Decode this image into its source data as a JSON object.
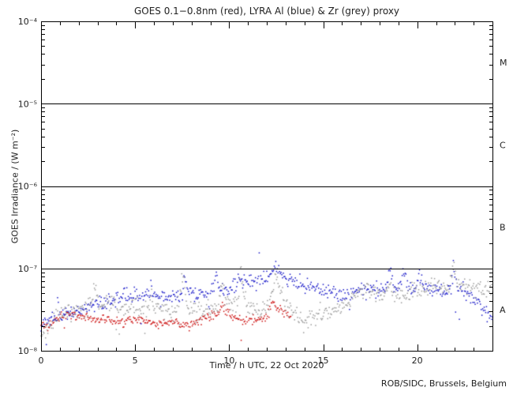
{
  "header": {
    "title": "GOES 0.1−0.8nm (red), LYRA Al (blue) & Zr (grey) proxy"
  },
  "footer": {
    "credit": "ROB/SIDC, Brussels, Belgium"
  },
  "chart_data": {
    "type": "scatter",
    "title": "GOES 0.1−0.8nm (red), LYRA Al (blue) & Zr (grey) proxy",
    "xlabel": "Time / h UTC, 22 Oct 2020",
    "ylabel": "GOES Irradiance / (W m⁻²)",
    "x_range": [
      0,
      24
    ],
    "y_range_exp": [
      -8,
      -4
    ],
    "x_major_ticks": [
      0,
      5,
      10,
      15,
      20
    ],
    "x_minor_step": 1,
    "y_tick_labels": [
      {
        "exp": -4,
        "label": "10⁻⁴"
      },
      {
        "exp": -5,
        "label": "10⁻⁵"
      },
      {
        "exp": -6,
        "label": "10⁻⁶"
      },
      {
        "exp": -7,
        "label": "10⁻⁷"
      },
      {
        "exp": -8,
        "label": "10⁻⁸"
      }
    ],
    "hlines_exp": [
      -5,
      -6,
      -7
    ],
    "flare_classes": [
      {
        "label": "M",
        "exp": -4.5
      },
      {
        "label": "C",
        "exp": -5.5
      },
      {
        "label": "B",
        "exp": -6.5
      },
      {
        "label": "A",
        "exp": -7.5
      }
    ],
    "grid": false,
    "legend": "encoded in title colors",
    "value_unit": "1e-8 W m-2",
    "series": [
      {
        "name": "GOES 0.1-0.8nm",
        "color": "#cc1111",
        "noise_dex": 0.028,
        "outlier_p": 0.004,
        "dt": 0.04,
        "anchors": [
          [
            0,
            2.2
          ],
          [
            0.3,
            2.0
          ],
          [
            0.8,
            2.5
          ],
          [
            1.5,
            2.7
          ],
          [
            2.2,
            2.6
          ],
          [
            3,
            2.4
          ],
          [
            4,
            2.3
          ],
          [
            5,
            2.4
          ],
          [
            5.8,
            2.2
          ],
          [
            6.5,
            2.1
          ],
          [
            7,
            2.3
          ],
          [
            7.8,
            2.0
          ],
          [
            8.3,
            2.2
          ],
          [
            9,
            2.6
          ],
          [
            9.5,
            2.9
          ],
          [
            9.65,
            3.6
          ],
          [
            9.8,
            3.1
          ],
          [
            10.2,
            2.6
          ],
          [
            10.8,
            2.3
          ],
          [
            11.5,
            2.4
          ],
          [
            12.0,
            2.6
          ],
          [
            12.3,
            3.8
          ],
          [
            12.5,
            3.3
          ],
          [
            12.8,
            3.0
          ],
          [
            13.1,
            2.8
          ],
          [
            13.3,
            2.6
          ]
        ]
      },
      {
        "name": "LYRA Al proxy",
        "color": "#1818c8",
        "noise_dex": 0.042,
        "outlier_p": 0.014,
        "dt": 0.04,
        "anchors": [
          [
            0,
            2.0
          ],
          [
            0.4,
            2.2
          ],
          [
            0.85,
            2.4
          ],
          [
            0.9,
            5.5
          ],
          [
            0.95,
            2.5
          ],
          [
            1.5,
            2.8
          ],
          [
            2,
            3.1
          ],
          [
            2.5,
            3.4
          ],
          [
            3,
            3.7
          ],
          [
            3.5,
            4.0
          ],
          [
            4,
            4.3
          ],
          [
            4.5,
            4.6
          ],
          [
            5,
            4.8
          ],
          [
            5.5,
            4.7
          ],
          [
            5.8,
            5.2
          ],
          [
            5.85,
            6.8
          ],
          [
            5.95,
            4.8
          ],
          [
            6.3,
            4.5
          ],
          [
            7,
            4.6
          ],
          [
            7.55,
            5.0
          ],
          [
            7.62,
            8.3
          ],
          [
            7.8,
            5.2
          ],
          [
            8.3,
            5.1
          ],
          [
            9,
            5.4
          ],
          [
            9.2,
            6.0
          ],
          [
            9.3,
            10.3
          ],
          [
            9.45,
            6.0
          ],
          [
            9.7,
            5.4
          ],
          [
            10.1,
            5.9
          ],
          [
            10.35,
            6.3
          ],
          [
            10.55,
            8.0
          ],
          [
            10.7,
            6.6
          ],
          [
            11,
            6.9
          ],
          [
            11.4,
            7.5
          ],
          [
            11.8,
            7.9
          ],
          [
            12.1,
            8.0
          ],
          [
            12.35,
            8.6
          ],
          [
            12.45,
            10.8
          ],
          [
            12.6,
            8.8
          ],
          [
            12.9,
            8.1
          ],
          [
            13.3,
            7.4
          ],
          [
            13.8,
            6.6
          ],
          [
            14.3,
            6.1
          ],
          [
            14.8,
            5.5
          ],
          [
            15.3,
            5.1
          ],
          [
            15.8,
            4.8
          ],
          [
            16.3,
            4.8
          ],
          [
            16.8,
            5.2
          ],
          [
            17.3,
            5.8
          ],
          [
            17.6,
            6.1
          ],
          [
            18,
            5.6
          ],
          [
            18.4,
            6.0
          ],
          [
            18.5,
            10.4
          ],
          [
            18.65,
            7.5
          ],
          [
            18.9,
            5.6
          ],
          [
            19.15,
            6.0
          ],
          [
            19.25,
            9.8
          ],
          [
            19.45,
            6.8
          ],
          [
            19.7,
            5.4
          ],
          [
            20,
            6.2
          ],
          [
            20.1,
            8.8
          ],
          [
            20.3,
            6.3
          ],
          [
            20.6,
            5.5
          ],
          [
            21,
            5.7
          ],
          [
            21.4,
            5.4
          ],
          [
            21.8,
            5.6
          ],
          [
            21.92,
            10.3
          ],
          [
            22.1,
            6.4
          ],
          [
            22.4,
            5.3
          ],
          [
            22.8,
            4.7
          ],
          [
            23.1,
            4.2
          ],
          [
            23.4,
            3.4
          ],
          [
            23.7,
            2.7
          ],
          [
            24,
            2.4
          ]
        ]
      },
      {
        "name": "LYRA Zr proxy",
        "color": "#9a9a9a",
        "noise_dex": 0.05,
        "outlier_p": 0.012,
        "dt": 0.04,
        "anchors": [
          [
            0,
            1.5
          ],
          [
            0.3,
            1.8
          ],
          [
            0.7,
            2.4
          ],
          [
            1.2,
            2.9
          ],
          [
            2,
            3.2
          ],
          [
            2.55,
            3.5
          ],
          [
            2.9,
            5.6
          ],
          [
            3.05,
            3.8
          ],
          [
            3.6,
            3.7
          ],
          [
            4.2,
            3.4
          ],
          [
            5,
            3.2
          ],
          [
            5.75,
            3.4
          ],
          [
            5.82,
            6.3
          ],
          [
            6,
            3.3
          ],
          [
            6.6,
            3.1
          ],
          [
            7.2,
            3.1
          ],
          [
            7.58,
            7.8
          ],
          [
            7.75,
            3.3
          ],
          [
            8.3,
            3.0
          ],
          [
            9,
            3.3
          ],
          [
            9.45,
            3.8
          ],
          [
            9.6,
            6.6
          ],
          [
            9.8,
            4.0
          ],
          [
            10.2,
            3.4
          ],
          [
            10.5,
            4.2
          ],
          [
            10.62,
            11.2
          ],
          [
            10.75,
            5.0
          ],
          [
            11,
            3.6
          ],
          [
            11.5,
            3.0
          ],
          [
            12,
            3.4
          ],
          [
            12.35,
            5.5
          ],
          [
            12.45,
            8.8
          ],
          [
            12.7,
            5.2
          ],
          [
            13,
            3.8
          ],
          [
            13.4,
            3.0
          ],
          [
            14,
            2.2
          ],
          [
            14.5,
            2.5
          ],
          [
            15,
            2.7
          ],
          [
            15.6,
            3.0
          ],
          [
            16.2,
            3.8
          ],
          [
            16.8,
            4.8
          ],
          [
            17.3,
            5.6
          ],
          [
            17.7,
            5.2
          ],
          [
            18.1,
            4.6
          ],
          [
            18.5,
            6.8
          ],
          [
            18.7,
            5.2
          ],
          [
            19.2,
            4.6
          ],
          [
            19.7,
            5.0
          ],
          [
            20.2,
            5.6
          ],
          [
            20.7,
            6.1
          ],
          [
            21.2,
            6.2
          ],
          [
            21.7,
            5.8
          ],
          [
            21.92,
            10.0
          ],
          [
            22.15,
            6.2
          ],
          [
            22.6,
            5.9
          ],
          [
            23.1,
            5.7
          ],
          [
            23.6,
            5.5
          ],
          [
            24,
            5.6
          ]
        ]
      }
    ]
  }
}
